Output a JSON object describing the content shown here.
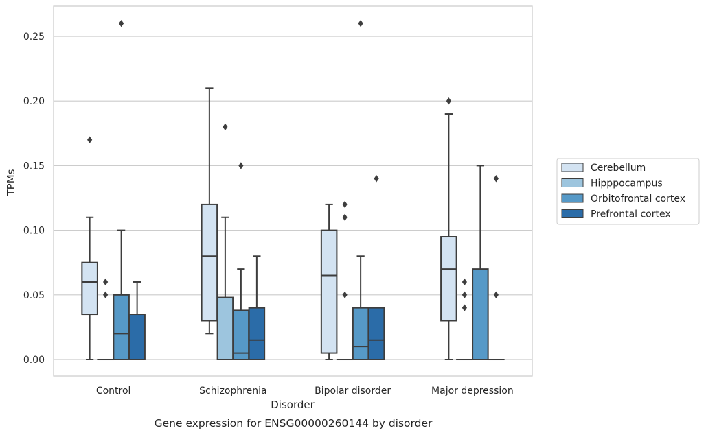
{
  "chart_data": {
    "type": "box",
    "title": "",
    "caption": "Gene expression for ENSG00000260144 by disorder",
    "xlabel": "Disorder",
    "ylabel": "TPMs",
    "ylim": [
      -0.0125,
      0.275
    ],
    "yticks": [
      "0.00",
      "0.05",
      "0.10",
      "0.15",
      "0.20",
      "0.25"
    ],
    "grid": "horizontal",
    "legend_position": "right",
    "categories": [
      "Control",
      "Schizophrenia",
      "Bipolar disorder",
      "Major depression"
    ],
    "series": [
      {
        "name": "Cerebellum",
        "color": "#d3e3f2",
        "boxes": [
          {
            "whislo": 0.0,
            "q1": 0.035,
            "med": 0.06,
            "q3": 0.075,
            "whishi": 0.11,
            "fliers": [
              0.17
            ]
          },
          {
            "whislo": 0.02,
            "q1": 0.03,
            "med": 0.08,
            "q3": 0.12,
            "whishi": 0.21,
            "fliers": []
          },
          {
            "whislo": 0.0,
            "q1": 0.005,
            "med": 0.065,
            "q3": 0.1,
            "whishi": 0.12,
            "fliers": []
          },
          {
            "whislo": 0.0,
            "q1": 0.03,
            "med": 0.07,
            "q3": 0.095,
            "whishi": 0.19,
            "fliers": [
              0.2
            ]
          }
        ]
      },
      {
        "name": "Hipppocampus",
        "color": "#9dc5de",
        "boxes": [
          {
            "whislo": 0.0,
            "q1": 0.0,
            "med": 0.0,
            "q3": 0.0,
            "whishi": 0.0,
            "fliers": [
              0.06,
              0.05
            ]
          },
          {
            "whislo": 0.0,
            "q1": 0.0,
            "med": 0.0,
            "q3": 0.048,
            "whishi": 0.11,
            "fliers": [
              0.18
            ]
          },
          {
            "whislo": 0.0,
            "q1": 0.0,
            "med": 0.0,
            "q3": 0.0,
            "whishi": 0.0,
            "fliers": [
              0.12,
              0.11,
              0.05
            ]
          },
          {
            "whislo": 0.0,
            "q1": 0.0,
            "med": 0.0,
            "q3": 0.0,
            "whishi": 0.0,
            "fliers": [
              0.06,
              0.05,
              0.04
            ]
          }
        ]
      },
      {
        "name": "Orbitofrontal cortex",
        "color": "#5699c7",
        "boxes": [
          {
            "whislo": 0.0,
            "q1": 0.0,
            "med": 0.02,
            "q3": 0.05,
            "whishi": 0.1,
            "fliers": [
              0.26
            ]
          },
          {
            "whislo": 0.0,
            "q1": 0.0,
            "med": 0.005,
            "q3": 0.038,
            "whishi": 0.07,
            "fliers": [
              0.15
            ]
          },
          {
            "whislo": 0.0,
            "q1": 0.0,
            "med": 0.01,
            "q3": 0.04,
            "whishi": 0.08,
            "fliers": [
              0.26
            ]
          },
          {
            "whislo": 0.0,
            "q1": 0.0,
            "med": 0.0,
            "q3": 0.07,
            "whishi": 0.15,
            "fliers": []
          }
        ]
      },
      {
        "name": "Prefrontal cortex",
        "color": "#2b6ca8",
        "boxes": [
          {
            "whislo": 0.0,
            "q1": 0.0,
            "med": 0.0,
            "q3": 0.035,
            "whishi": 0.06,
            "fliers": []
          },
          {
            "whislo": 0.0,
            "q1": 0.0,
            "med": 0.015,
            "q3": 0.04,
            "whishi": 0.08,
            "fliers": []
          },
          {
            "whislo": 0.0,
            "q1": 0.0,
            "med": 0.015,
            "q3": 0.04,
            "whishi": 0.04,
            "fliers": [
              0.14
            ]
          },
          {
            "whislo": 0.0,
            "q1": 0.0,
            "med": 0.0,
            "q3": 0.0,
            "whishi": 0.0,
            "fliers": [
              0.14,
              0.05
            ]
          }
        ]
      }
    ]
  }
}
